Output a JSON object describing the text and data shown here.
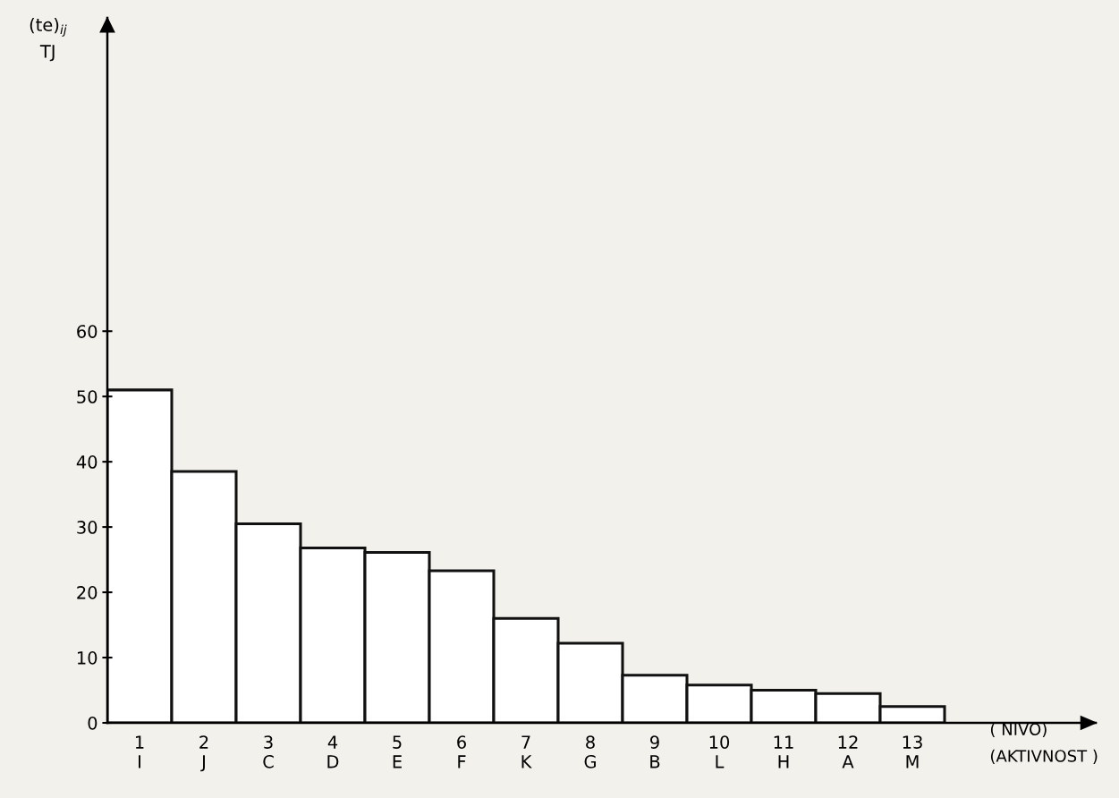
{
  "chart_data": {
    "type": "bar",
    "ylabel": "(te)$_{ij}$\nTJ",
    "categories": [
      "1\nI",
      "2\nJ",
      "3\nC",
      "4\nD",
      "5\nE",
      "6\nF",
      "7\nK",
      "8\nG",
      "9\nB",
      "10\nL",
      "11\nH",
      "12\nA",
      "13\nM"
    ],
    "values": [
      51,
      38.5,
      30.5,
      26.8,
      26.1,
      23.3,
      16,
      12.2,
      7.3,
      5.8,
      5,
      4.5,
      2.5
    ],
    "color": "#ffffff",
    "ylim": [
      0,
      108
    ],
    "yticks": [
      0,
      10,
      20,
      30,
      40,
      50,
      60
    ],
    "annotations": [
      "( NIVO)\n(AKTIVNOST )"
    ],
    "grid": false
  }
}
